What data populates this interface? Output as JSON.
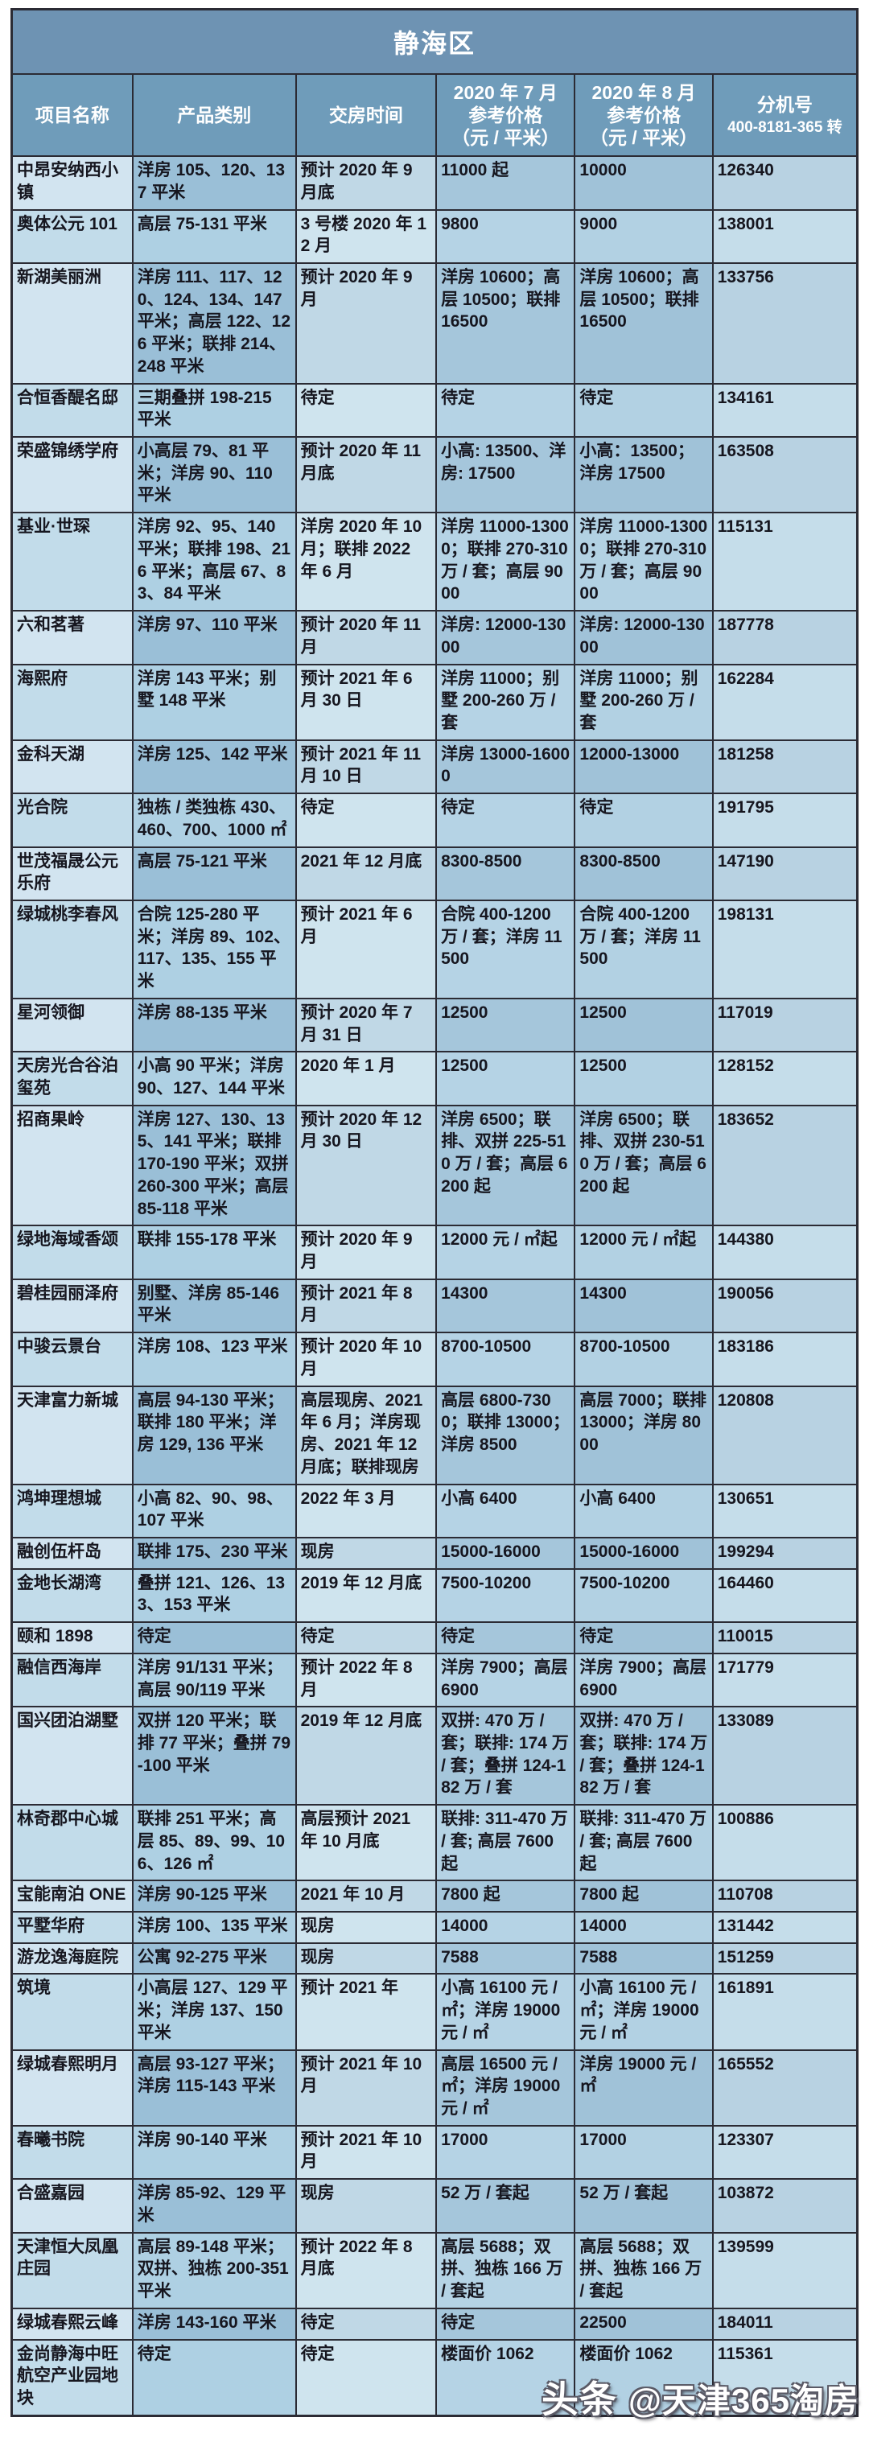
{
  "title": "静海区",
  "header": {
    "project": "项目名称",
    "product": "产品类别",
    "delivery": "交房时间",
    "july": "2020 年 7 月\n参考价格\n（元 / 平米）",
    "august": "2020 年 8 月\n参考价格\n（元 / 平米）",
    "ext_title": "分机号",
    "ext_number": "400-8181-365 转"
  },
  "colors": {
    "title_bg": "#6e93b3",
    "header_bg": "#6f9cba",
    "border": "#2b2b34",
    "row_dark": "#9abfd7",
    "row_light": "#aed0e3",
    "name_col": "#d2e4f0"
  },
  "rows": [
    {
      "name": "中昂安纳西小镇",
      "product": "洋房 105、120、137 平米",
      "delivery": "预计 2020 年 9 月底",
      "july": "11000 起",
      "august": "10000",
      "ext": "126340"
    },
    {
      "name": "奥体公元 101",
      "product": "高层 75-131 平米",
      "delivery": "3 号楼 2020 年 12 月",
      "july": "9800",
      "august": "9000",
      "ext": "138001"
    },
    {
      "name": "新湖美丽洲",
      "product": "洋房 111、117、120、124、134、147 平米；高层 122、126 平米；联排 214、248 平米",
      "delivery": "预计 2020 年 9 月",
      "july": "洋房 10600；高层 10500；联排 16500",
      "august": "洋房 10600；高层 10500；联排 16500",
      "ext": "133756"
    },
    {
      "name": "合恒香醍名邸",
      "product": "三期叠拼 198-215 平米",
      "delivery": "待定",
      "july": "待定",
      "august": "待定",
      "ext": "134161"
    },
    {
      "name": "荣盛锦绣学府",
      "product": "小高层 79、81 平米；洋房 90、110 平米",
      "delivery": "预计 2020 年 11 月底",
      "july": "小高: 13500、洋房: 17500",
      "august": "小高：13500；洋房 17500",
      "ext": "163508"
    },
    {
      "name": "基业·世琛",
      "product": "洋房 92、95、140 平米；联排 198、216 平米；高层 67、83、84 平米",
      "delivery": "洋房 2020 年 10 月；联排 2022 年 6 月",
      "july": "洋房 11000-13000；联排 270-310 万 / 套；高层 9000",
      "august": "洋房 11000-13000；联排 270-310 万 / 套；高层 9000",
      "ext": "115131"
    },
    {
      "name": "六和茗著",
      "product": "洋房 97、110 平米",
      "delivery": "预计 2020 年 11 月",
      "july": "洋房: 12000-13000",
      "august": "洋房: 12000-13000",
      "ext": "187778"
    },
    {
      "name": "海熙府",
      "product": "洋房 143 平米；别墅 148 平米",
      "delivery": "预计 2021 年 6 月 30 日",
      "july": "洋房 11000；别墅 200-260 万 / 套",
      "august": "洋房 11000；别墅 200-260 万 / 套",
      "ext": "162284"
    },
    {
      "name": "金科天湖",
      "product": "洋房 125、142 平米",
      "delivery": "预计 2021 年 11 月 10 日",
      "july": "洋房 13000-16000",
      "august": "12000-13000",
      "ext": "181258"
    },
    {
      "name": "光合院",
      "product": "独栋 / 类独栋 430、460、700、1000 ㎡",
      "delivery": "待定",
      "july": "待定",
      "august": "待定",
      "ext": "191795"
    },
    {
      "name": "世茂福晟公元乐府",
      "product": "高层 75-121 平米",
      "delivery": "2021 年 12 月底",
      "july": "8300-8500",
      "august": "8300-8500",
      "ext": "147190"
    },
    {
      "name": "绿城桃李春风",
      "product": "合院 125-280 平米；洋房 89、102、117、135、155 平米",
      "delivery": "预计 2021 年 6 月",
      "july": "合院 400-1200 万 / 套；洋房 11500",
      "august": "合院 400-1200 万 / 套；洋房 11500",
      "ext": "198131"
    },
    {
      "name": "星河领御",
      "product": "洋房 88-135 平米",
      "delivery": "预计 2020 年 7 月 31 日",
      "july": "12500",
      "august": "12500",
      "ext": "117019"
    },
    {
      "name": "天房光合谷泊玺苑",
      "product": "小高 90 平米；洋房 90、127、144 平米",
      "delivery": "2020 年 1 月",
      "july": "12500",
      "august": "12500",
      "ext": "128152"
    },
    {
      "name": "招商果岭",
      "product": "洋房 127、130、135、141 平米；联排 170-190 平米；双拼 260-300 平米；高层 85-118 平米",
      "delivery": "预计 2020 年 12 月 30 日",
      "july": "洋房 6500；联排、双拼 225-510 万 / 套；高层 6200 起",
      "august": "洋房 6500；联排、双拼 230-510 万 / 套；高层 6200 起",
      "ext": "183652"
    },
    {
      "name": "绿地海域香颂",
      "product": "联排 155-178 平米",
      "delivery": "预计 2020 年 9 月",
      "july": "12000 元 / ㎡起",
      "august": "12000 元 / ㎡起",
      "ext": "144380"
    },
    {
      "name": "碧桂园丽泽府",
      "product": "别墅、洋房 85-146 平米",
      "delivery": "预计 2021 年 8 月",
      "july": "14300",
      "august": "14300",
      "ext": "190056"
    },
    {
      "name": "中骏云景台",
      "product": "洋房 108、123 平米",
      "delivery": "预计 2020 年 10 月",
      "july": "8700-10500",
      "august": "8700-10500",
      "ext": "183186"
    },
    {
      "name": "天津富力新城",
      "product": "高层 94-130 平米；联排 180 平米；洋房 129, 136 平米",
      "delivery": "高层现房、2021 年 6 月；洋房现房、2021 年 12 月底；联排现房",
      "july": "高层 6800-7300；联排 13000；洋房 8500",
      "august": "高层 7000；联排 13000；洋房 8000",
      "ext": "120808"
    },
    {
      "name": "鸿坤理想城",
      "product": "小高 82、90、98、107 平米",
      "delivery": "2022 年 3 月",
      "july": "小高 6400",
      "august": "小高 6400",
      "ext": "130651"
    },
    {
      "name": "融创伍杆岛",
      "product": "联排 175、230 平米",
      "delivery": "现房",
      "july": "15000-16000",
      "august": "15000-16000",
      "ext": "199294"
    },
    {
      "name": "金地长湖湾",
      "product": "叠拼 121、126、133、153 平米",
      "delivery": "2019 年 12 月底",
      "july": "7500-10200",
      "august": "7500-10200",
      "ext": "164460"
    },
    {
      "name": "颐和 1898",
      "product": "待定",
      "delivery": "待定",
      "july": "待定",
      "august": "待定",
      "ext": "110015"
    },
    {
      "name": "融信西海岸",
      "product": "洋房 91/131 平米；高层 90/119 平米",
      "delivery": "预计 2022 年 8 月",
      "july": "洋房 7900；高层 6900",
      "august": "洋房 7900；高层 6900",
      "ext": "171779"
    },
    {
      "name": "国兴团泊湖墅",
      "product": "双拼 120 平米；联排 77 平米；叠拼 79-100 平米",
      "delivery": "2019 年 12 月底",
      "july": "双拼: 470 万 / 套；联排: 174 万 / 套；叠拼 124-182 万 / 套",
      "august": "双拼: 470 万 / 套；联排: 174 万 / 套；叠拼 124-182 万 / 套",
      "ext": "133089"
    },
    {
      "name": "林奇郡中心城",
      "product": "联排 251 平米；高层 85、89、99、106、126 ㎡",
      "delivery": "高层预计 2021 年 10 月底",
      "july": "联排: 311-470 万 / 套; 高层 7600 起",
      "august": "联排: 311-470 万 / 套; 高层 7600 起",
      "ext": "100886"
    },
    {
      "name": "宝能南泊 ONE",
      "product": "洋房 90-125 平米",
      "delivery": "2021 年 10 月",
      "july": "7800 起",
      "august": "7800 起",
      "ext": "110708"
    },
    {
      "name": "平墅华府",
      "product": "洋房 100、135 平米",
      "delivery": "现房",
      "july": "14000",
      "august": "14000",
      "ext": "131442"
    },
    {
      "name": "游龙逸海庭院",
      "product": "公寓 92-275 平米",
      "delivery": "现房",
      "july": "7588",
      "august": "7588",
      "ext": "151259"
    },
    {
      "name": "筑境",
      "product": "小高层 127、129 平米；洋房 137、150 平米",
      "delivery": "预计 2021 年",
      "july": "小高 16100 元 / ㎡；洋房 19000 元 / ㎡",
      "august": "小高 16100 元 / ㎡；洋房 19000 元 / ㎡",
      "ext": "161891"
    },
    {
      "name": "绿城春熙明月",
      "product": "高层 93-127 平米；洋房 115-143 平米",
      "delivery": "预计 2021 年 10 月",
      "july": "高层 16500 元 / ㎡；洋房 19000 元 / ㎡",
      "august": "洋房 19000 元 / ㎡",
      "ext": "165552"
    },
    {
      "name": "春曦书院",
      "product": "洋房 90-140 平米",
      "delivery": "预计 2021 年 10 月",
      "july": "17000",
      "august": "17000",
      "ext": "123307"
    },
    {
      "name": "合盛嘉园",
      "product": "洋房 85-92、129 平米",
      "delivery": "现房",
      "july": "52 万 / 套起",
      "august": "52 万 / 套起",
      "ext": "103872"
    },
    {
      "name": "天津恒大凤凰庄园",
      "product": "高层 89-148 平米；双拼、独栋 200-351 平米",
      "delivery": "预计 2022 年 8 月底",
      "july": "高层 5688；双拼、独栋 166 万 / 套起",
      "august": "高层 5688；双拼、独栋 166 万 / 套起",
      "ext": "139599"
    },
    {
      "name": "绿城春熙云峰",
      "product": "洋房 143-160 平米",
      "delivery": "待定",
      "july": "待定",
      "august": "22500",
      "ext": "184011"
    },
    {
      "name": "金尚静海中旺航空产业园地块",
      "product": "待定",
      "delivery": "待定",
      "july": "楼面价 1062",
      "august": "楼面价 1062",
      "ext": "115361"
    }
  ],
  "watermark": {
    "brand": "头条",
    "handle": "@天津365淘房"
  }
}
